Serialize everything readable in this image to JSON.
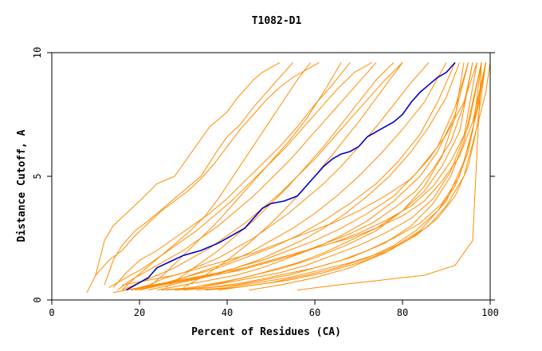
{
  "chart_data": {
    "type": "line",
    "title": "T1082-D1",
    "xlabel": "Percent of Residues (CA)",
    "ylabel": "Distance Cutoff, A",
    "xlim": [
      0,
      100
    ],
    "ylim": [
      0,
      10
    ],
    "xticks": [
      "0",
      "20",
      "40",
      "60",
      "80",
      "100"
    ],
    "yticks": [
      "0",
      "5",
      "10"
    ],
    "grid": false,
    "legend": "none",
    "highlight_color": "#0000c8",
    "other_color": "#ff8c00",
    "highlight": {
      "x": [
        17,
        20,
        22,
        24,
        27,
        30,
        34,
        38,
        41,
        44,
        46,
        48,
        50,
        53,
        56,
        58,
        60,
        62,
        64,
        66,
        68,
        70,
        72,
        75,
        78,
        80,
        82,
        84,
        86,
        88,
        90,
        92
      ],
      "y": [
        0.4,
        0.7,
        0.9,
        1.3,
        1.55,
        1.8,
        2.0,
        2.3,
        2.6,
        2.9,
        3.3,
        3.7,
        3.9,
        4.0,
        4.2,
        4.6,
        5.0,
        5.4,
        5.7,
        5.9,
        6.0,
        6.2,
        6.6,
        6.9,
        7.2,
        7.5,
        8.0,
        8.4,
        8.7,
        9.0,
        9.2,
        9.6
      ]
    },
    "series": [
      {
        "x": [
          10,
          12,
          14,
          17,
          20,
          24,
          28,
          32,
          36,
          38,
          40,
          42,
          44,
          46,
          48,
          50,
          52
        ],
        "y": [
          1.0,
          2.4,
          3.0,
          3.5,
          4.0,
          4.7,
          5.0,
          6.0,
          7.0,
          7.3,
          7.6,
          8.1,
          8.5,
          8.9,
          9.2,
          9.4,
          9.6
        ]
      },
      {
        "x": [
          12,
          14,
          16,
          19,
          22,
          26,
          30,
          34,
          38,
          40,
          43,
          46,
          49,
          52,
          55
        ],
        "y": [
          0.6,
          1.6,
          2.2,
          2.8,
          3.2,
          3.8,
          4.4,
          5.0,
          6.1,
          6.6,
          7.1,
          7.8,
          8.4,
          9.0,
          9.6
        ]
      },
      {
        "x": [
          8,
          10,
          13,
          16,
          19,
          22,
          25,
          28,
          31,
          34,
          37,
          40,
          43,
          46,
          49,
          52,
          55,
          58,
          61
        ],
        "y": [
          0.3,
          1.0,
          1.6,
          2.0,
          2.6,
          3.1,
          3.6,
          4.0,
          4.4,
          4.9,
          5.5,
          6.2,
          6.9,
          7.5,
          8.1,
          8.6,
          9.0,
          9.3,
          9.6
        ]
      },
      {
        "x": [
          14,
          17,
          20,
          24,
          28,
          32,
          36,
          40,
          44,
          48,
          52,
          56,
          60,
          64,
          68
        ],
        "y": [
          0.5,
          1.1,
          1.6,
          2.0,
          2.5,
          3.0,
          3.5,
          4.1,
          4.8,
          5.5,
          6.2,
          7.0,
          7.9,
          8.7,
          9.6
        ]
      },
      {
        "x": [
          15,
          18,
          22,
          26,
          30,
          34,
          38,
          42,
          46,
          50,
          54,
          58,
          62,
          66,
          70,
          74
        ],
        "y": [
          0.4,
          0.8,
          1.2,
          1.6,
          2.0,
          2.5,
          3.0,
          3.6,
          4.2,
          4.9,
          5.6,
          6.4,
          7.2,
          8.0,
          8.8,
          9.6
        ]
      },
      {
        "x": [
          16,
          20,
          24,
          28,
          32,
          36,
          40,
          44,
          48,
          52,
          56,
          60,
          64,
          68,
          72,
          76,
          80
        ],
        "y": [
          0.4,
          0.7,
          1.0,
          1.3,
          1.7,
          2.1,
          2.6,
          3.1,
          3.7,
          4.3,
          5.0,
          5.7,
          6.5,
          7.3,
          8.1,
          8.9,
          9.6
        ]
      },
      {
        "x": [
          18,
          22,
          26,
          30,
          34,
          38,
          42,
          46,
          50,
          54,
          58,
          62,
          66,
          70,
          74,
          78,
          82,
          86
        ],
        "y": [
          0.4,
          0.6,
          0.9,
          1.1,
          1.4,
          1.7,
          2.1,
          2.5,
          3.0,
          3.5,
          4.1,
          4.7,
          5.4,
          6.2,
          7.0,
          7.9,
          8.8,
          9.6
        ]
      },
      {
        "x": [
          20,
          25,
          30,
          35,
          40,
          45,
          50,
          55,
          60,
          65,
          70,
          75,
          80,
          85,
          90
        ],
        "y": [
          0.4,
          0.6,
          0.9,
          1.2,
          1.5,
          1.9,
          2.4,
          2.9,
          3.5,
          4.2,
          5.0,
          5.9,
          6.9,
          8.0,
          9.6
        ]
      },
      {
        "x": [
          22,
          27,
          32,
          37,
          42,
          47,
          52,
          57,
          62,
          67,
          72,
          77,
          82,
          86,
          90,
          93
        ],
        "y": [
          0.4,
          0.6,
          0.8,
          1.0,
          1.3,
          1.6,
          2.0,
          2.4,
          2.9,
          3.5,
          4.2,
          5.0,
          6.0,
          7.0,
          8.2,
          9.6
        ]
      },
      {
        "x": [
          24,
          30,
          36,
          42,
          48,
          54,
          60,
          66,
          72,
          78,
          84,
          88,
          92,
          95
        ],
        "y": [
          0.4,
          0.6,
          0.8,
          1.0,
          1.3,
          1.7,
          2.1,
          2.6,
          3.2,
          4.0,
          5.0,
          6.0,
          7.5,
          9.6
        ]
      },
      {
        "x": [
          26,
          32,
          38,
          44,
          50,
          56,
          62,
          68,
          74,
          80,
          85,
          89,
          93,
          96
        ],
        "y": [
          0.4,
          0.5,
          0.7,
          0.9,
          1.2,
          1.5,
          1.9,
          2.4,
          2.9,
          3.6,
          4.4,
          5.4,
          6.8,
          9.6
        ]
      },
      {
        "x": [
          28,
          34,
          40,
          46,
          52,
          58,
          64,
          70,
          76,
          82,
          87,
          91,
          94,
          97
        ],
        "y": [
          0.4,
          0.5,
          0.7,
          0.9,
          1.1,
          1.4,
          1.8,
          2.2,
          2.7,
          3.3,
          4.1,
          5.2,
          6.6,
          9.6
        ]
      },
      {
        "x": [
          30,
          36,
          42,
          48,
          54,
          60,
          66,
          72,
          78,
          84,
          89,
          93,
          96,
          98
        ],
        "y": [
          0.4,
          0.5,
          0.6,
          0.8,
          1.0,
          1.3,
          1.6,
          2.0,
          2.5,
          3.1,
          3.9,
          5.0,
          6.8,
          9.6
        ]
      },
      {
        "x": [
          33,
          40,
          47,
          54,
          61,
          68,
          75,
          81,
          86,
          90,
          94,
          97,
          99
        ],
        "y": [
          0.4,
          0.5,
          0.7,
          0.9,
          1.2,
          1.5,
          1.9,
          2.4,
          3.0,
          3.8,
          5.0,
          7.0,
          9.6
        ]
      },
      {
        "x": [
          20,
          26,
          32,
          38,
          44,
          50,
          56,
          62,
          68,
          74,
          80,
          85,
          89,
          93,
          96,
          99
        ],
        "y": [
          0.5,
          0.7,
          0.9,
          1.1,
          1.3,
          1.6,
          1.9,
          2.2,
          2.5,
          2.9,
          3.4,
          4.0,
          4.8,
          5.8,
          7.2,
          9.6
        ]
      },
      {
        "x": [
          22,
          28,
          34,
          40,
          46,
          52,
          58,
          64,
          70,
          76,
          82,
          87,
          91,
          95,
          98
        ],
        "y": [
          0.5,
          0.7,
          0.9,
          1.1,
          1.4,
          1.7,
          2.0,
          2.3,
          2.7,
          3.2,
          3.8,
          4.6,
          5.6,
          7.0,
          9.6
        ]
      },
      {
        "x": [
          16,
          22,
          28,
          34,
          40,
          46,
          52,
          58,
          64,
          70,
          76,
          82,
          86,
          90,
          94,
          97
        ],
        "y": [
          0.6,
          0.8,
          1.0,
          1.3,
          1.6,
          1.9,
          2.3,
          2.7,
          3.1,
          3.6,
          4.2,
          4.9,
          5.7,
          6.7,
          8.0,
          9.6
        ]
      },
      {
        "x": [
          18,
          24,
          30,
          36,
          42,
          48,
          54,
          60,
          66,
          72,
          78,
          83,
          88,
          92,
          95
        ],
        "y": [
          0.4,
          0.6,
          0.8,
          1.0,
          1.3,
          1.6,
          2.0,
          2.4,
          2.9,
          3.5,
          4.2,
          5.1,
          6.2,
          7.8,
          9.6
        ]
      },
      {
        "x": [
          25,
          32,
          39,
          46,
          53,
          60,
          67,
          74,
          80,
          85,
          89,
          92,
          94
        ],
        "y": [
          0.4,
          0.5,
          0.7,
          1.0,
          1.3,
          1.7,
          2.2,
          2.8,
          3.6,
          4.6,
          5.8,
          7.4,
          9.6
        ]
      },
      {
        "x": [
          28,
          36,
          44,
          52,
          60,
          68,
          76,
          82,
          87,
          91,
          94,
          96,
          98
        ],
        "y": [
          0.4,
          0.5,
          0.7,
          1.0,
          1.3,
          1.7,
          2.3,
          3.0,
          3.9,
          5.0,
          6.4,
          8.0,
          9.6
        ]
      },
      {
        "x": [
          35,
          42,
          50,
          58,
          65,
          72,
          78,
          83,
          88,
          92,
          95,
          97,
          99
        ],
        "y": [
          0.4,
          0.5,
          0.7,
          1.0,
          1.3,
          1.7,
          2.2,
          2.8,
          3.6,
          4.6,
          6.0,
          7.8,
          9.6
        ]
      },
      {
        "x": [
          38,
          46,
          54,
          62,
          70,
          77,
          83,
          88,
          92,
          95,
          97,
          99,
          100
        ],
        "y": [
          0.4,
          0.6,
          0.8,
          1.1,
          1.5,
          2.0,
          2.6,
          3.3,
          4.2,
          5.4,
          7.0,
          8.4,
          9.6
        ]
      },
      {
        "x": [
          14,
          20,
          26,
          32,
          38,
          44,
          50,
          56,
          62,
          68,
          74,
          79,
          84,
          88,
          92
        ],
        "y": [
          0.3,
          0.5,
          0.7,
          1.0,
          1.3,
          1.7,
          2.1,
          2.6,
          3.2,
          3.9,
          4.7,
          5.6,
          6.7,
          8.0,
          9.6
        ]
      },
      {
        "x": [
          19,
          25,
          31,
          37,
          43,
          49,
          55,
          61,
          67,
          73,
          78,
          83,
          87,
          91,
          94,
          96
        ],
        "y": [
          0.4,
          0.6,
          0.8,
          1.0,
          1.2,
          1.5,
          1.8,
          2.2,
          2.6,
          3.1,
          3.7,
          4.4,
          5.3,
          6.4,
          7.9,
          9.6
        ]
      },
      {
        "x": [
          56,
          65,
          75,
          85,
          92,
          96,
          98
        ],
        "y": [
          0.4,
          0.6,
          0.8,
          1.0,
          1.4,
          2.4,
          9.6
        ]
      },
      {
        "x": [
          16,
          19,
          23,
          27,
          31,
          35,
          38,
          41,
          44,
          47,
          50,
          53,
          56,
          59
        ],
        "y": [
          0.4,
          0.9,
          1.5,
          2.1,
          2.7,
          3.4,
          4.1,
          4.9,
          5.7,
          6.5,
          7.3,
          8.1,
          8.9,
          9.6
        ]
      },
      {
        "x": [
          22,
          26,
          30,
          34,
          38,
          42,
          46,
          50,
          54,
          58,
          62,
          66
        ],
        "y": [
          0.5,
          1.1,
          1.8,
          2.5,
          3.2,
          4.0,
          4.8,
          5.6,
          6.4,
          7.3,
          8.4,
          9.6
        ]
      },
      {
        "x": [
          30,
          35,
          40,
          45,
          50,
          55,
          60,
          65,
          70,
          75,
          80
        ],
        "y": [
          0.5,
          1.0,
          1.6,
          2.3,
          3.1,
          4.0,
          5.0,
          6.1,
          7.2,
          8.4,
          9.6
        ]
      },
      {
        "x": [
          45,
          52,
          60,
          68,
          76,
          84,
          90,
          94,
          97,
          99
        ],
        "y": [
          0.4,
          0.6,
          0.9,
          1.3,
          1.9,
          2.8,
          4.0,
          5.6,
          7.6,
          9.6
        ]
      },
      {
        "x": [
          26,
          30,
          34,
          38,
          42,
          46,
          50,
          54,
          58,
          62,
          66,
          70,
          74,
          78
        ],
        "y": [
          0.5,
          1.0,
          1.5,
          2.0,
          2.6,
          3.2,
          3.9,
          4.6,
          5.4,
          6.2,
          7.1,
          8.0,
          8.9,
          9.6
        ]
      },
      {
        "x": [
          13,
          17,
          21,
          25,
          29,
          33,
          37,
          41,
          45,
          49,
          53,
          57,
          61,
          65,
          69,
          73
        ],
        "y": [
          0.5,
          0.9,
          1.3,
          1.8,
          2.3,
          2.8,
          3.4,
          4.0,
          4.7,
          5.4,
          6.1,
          6.9,
          7.7,
          8.5,
          9.2,
          9.6
        ]
      }
    ]
  }
}
